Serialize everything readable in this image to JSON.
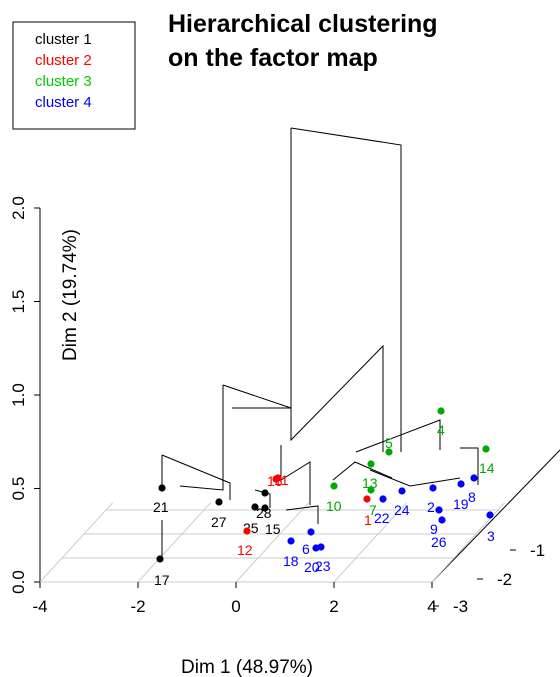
{
  "chart_data": {
    "type": "scatter",
    "title_lines": [
      "Hierarchical clustering",
      "on the factor map"
    ],
    "xlabel": "Dim 1 (48.97%)",
    "ylabel": "Dim 2 (19.74%)",
    "x_ticks": [
      "-4",
      "-2",
      "0",
      "2",
      "4"
    ],
    "z_ticks": [
      "0.0",
      "0.5",
      "1.0",
      "1.5",
      "2.0"
    ],
    "y_ticks": [
      "-3",
      "-2",
      "-1"
    ],
    "legend": [
      {
        "label": "cluster 1",
        "color": "#000000"
      },
      {
        "label": "cluster 2",
        "color": "#ff0000"
      },
      {
        "label": "cluster 3",
        "color": "#00cc00"
      },
      {
        "label": "cluster 4",
        "color": "#0000ff"
      }
    ],
    "points": [
      {
        "label": "21",
        "cluster": 1,
        "x": -1.4,
        "y": -1.2
      },
      {
        "label": "27",
        "cluster": 1,
        "x": -0.3,
        "y": -1.5
      },
      {
        "label": "25",
        "cluster": 1,
        "x": 0.4,
        "y": -1.8
      },
      {
        "label": "15",
        "cluster": 1,
        "x": 0.6,
        "y": -1.7
      },
      {
        "label": "28",
        "cluster": 1,
        "x": 0.6,
        "y": -1.3
      },
      {
        "label": "17",
        "cluster": 1,
        "x": -1.4,
        "y": -2.9
      },
      {
        "label": "16",
        "cluster": 2,
        "x": 0.9,
        "y": -1.1
      },
      {
        "label": "11",
        "cluster": 2,
        "x": 0.9,
        "y": -1.3
      },
      {
        "label": "12",
        "cluster": 2,
        "x": 0.2,
        "y": -2.1
      },
      {
        "label": "1",
        "cluster": 2,
        "x": 2.3,
        "y": -1.4
      },
      {
        "label": "10",
        "cluster": 3,
        "x": 1.7,
        "y": -0.8
      },
      {
        "label": "13",
        "cluster": 3,
        "x": 2.1,
        "y": -0.3
      },
      {
        "label": "7",
        "cluster": 3,
        "x": 2.4,
        "y": -1.0
      },
      {
        "label": "5",
        "cluster": 3,
        "x": 2.8,
        "y": -0.2
      },
      {
        "label": "4",
        "cluster": 3,
        "x": 3.5,
        "y": 0.8
      },
      {
        "label": "14",
        "cluster": 3,
        "x": 4.2,
        "y": -0.1
      },
      {
        "label": "22",
        "cluster": 4,
        "x": 2.5,
        "y": -1.3
      },
      {
        "label": "24",
        "cluster": 4,
        "x": 2.9,
        "y": -1.0
      },
      {
        "label": "2",
        "cluster": 4,
        "x": 3.3,
        "y": -1.0
      },
      {
        "label": "19",
        "cluster": 4,
        "x": 3.9,
        "y": -0.8
      },
      {
        "label": "8",
        "cluster": 4,
        "x": 4.1,
        "y": -0.8
      },
      {
        "label": "9",
        "cluster": 4,
        "x": 3.3,
        "y": -1.6
      },
      {
        "label": "26",
        "cluster": 4,
        "x": 3.3,
        "y": -1.9
      },
      {
        "label": "3",
        "cluster": 4,
        "x": 4.3,
        "y": -1.6
      },
      {
        "label": "18",
        "cluster": 4,
        "x": 1.0,
        "y": -2.3
      },
      {
        "label": "6",
        "cluster": 4,
        "x": 1.3,
        "y": -2.2
      },
      {
        "label": "20",
        "cluster": 4,
        "x": 1.5,
        "y": -2.2
      },
      {
        "label": "23",
        "cluster": 4,
        "x": 1.6,
        "y": -2.5
      }
    ],
    "dendrogram_heights": [
      {
        "group": "cluster 1 & 2 merge",
        "height": 1.24
      },
      {
        "group": "cluster 3 & 4 merge",
        "height": 1.14
      },
      {
        "group": "root",
        "height": 2.74
      }
    ]
  }
}
